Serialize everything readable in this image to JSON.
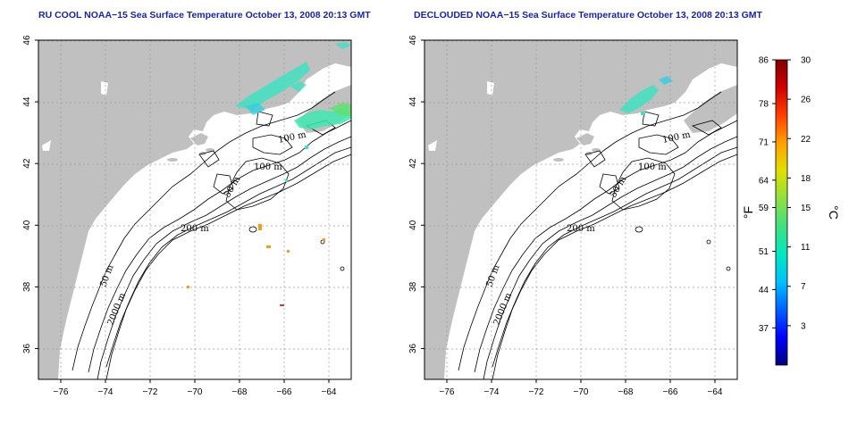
{
  "panels": [
    {
      "id": "left",
      "title": "RU COOL NOAA−15 Sea Surface Temperature October 13, 2008 20:13 GMT"
    },
    {
      "id": "right",
      "title": "DECLOUDED NOAA−15 Sea Surface Temperature October 13, 2008 20:13 GMT"
    }
  ],
  "axes": {
    "lon_ticks": [
      -76,
      -74,
      -72,
      -70,
      -68,
      -66,
      -64
    ],
    "lat_ticks": [
      36,
      38,
      40,
      42,
      44,
      46
    ],
    "lon_range": [
      -77,
      -63
    ],
    "lat_range": [
      35,
      46
    ],
    "grid": "dotted"
  },
  "contour_labels": {
    "left": [
      "100 m",
      "100 m",
      "50 m",
      "200 m",
      "50 m",
      "2000 m"
    ],
    "right": [
      "100 m",
      "100 m",
      "50 m",
      "200 m",
      "50 m",
      "2000 m"
    ]
  },
  "colorbar": {
    "fahrenheit_ticks": [
      "86",
      "78",
      "71",
      "64",
      "59",
      "51",
      "44",
      "37"
    ],
    "celsius_ticks": [
      "30",
      "26",
      "22",
      "18",
      "15",
      "11",
      "7",
      "3"
    ],
    "fahrenheit_unit": "°F",
    "celsius_unit": "°C",
    "range_c": [
      -1,
      30
    ],
    "colors": [
      "#000080",
      "#0000ff",
      "#0060ff",
      "#00c0ff",
      "#00e8c0",
      "#40e080",
      "#90e040",
      "#e0e000",
      "#ffa000",
      "#ff4000",
      "#d00000",
      "#800000"
    ]
  },
  "colors": {
    "land": "#c0c0c0",
    "water": "#ffffff",
    "title": "#1a24a8",
    "sst_cool": "#40e0c0",
    "sst_warm": "#e0a020"
  }
}
